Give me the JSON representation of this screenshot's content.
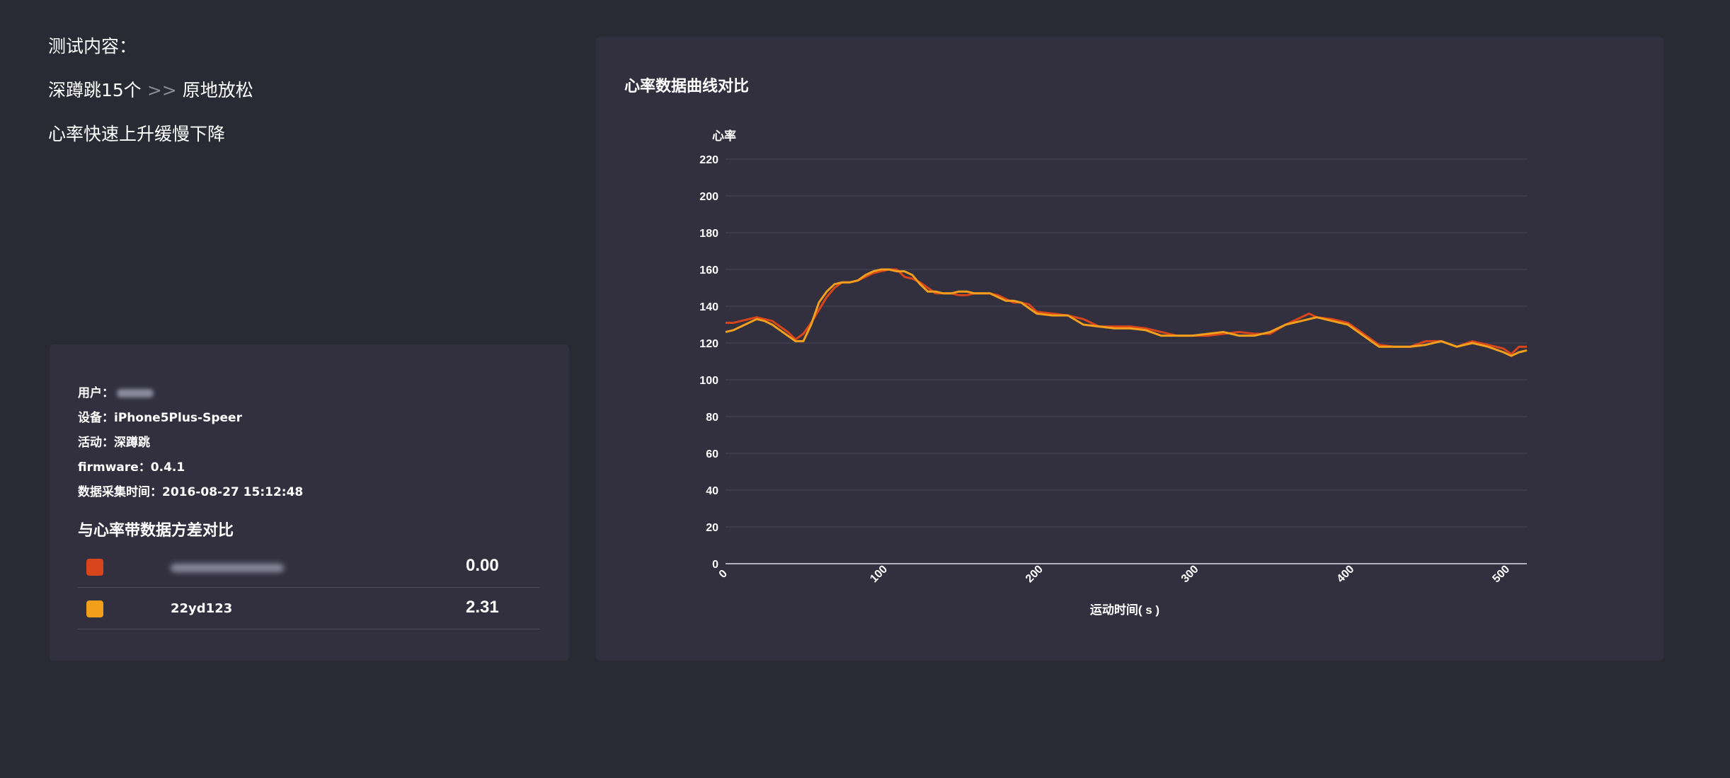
{
  "test": {
    "title": "测试内容：",
    "line1_a": "深蹲跳15个",
    "line1_arrow": ">>",
    "line1_b": "原地放松",
    "line2": "心率快速上升缓慢下降"
  },
  "info": {
    "user_label": "用户：",
    "device": "设备：iPhone5Plus-Speer",
    "activity": "活动：深蹲跳",
    "firmware": "firmware：0.4.1",
    "time": "数据采集时间：2016-08-27 15:12:48"
  },
  "variance": {
    "title": "与心率带数据方差对比",
    "rows": [
      {
        "color": "#d9451b",
        "name": "",
        "value": "0.00"
      },
      {
        "color": "#f2a01c",
        "name": "22yd123",
        "value": "2.31"
      }
    ]
  },
  "chart": {
    "title": "心率数据曲线对比"
  },
  "chart_data": {
    "type": "line",
    "ylabel": "心率",
    "xlabel": "运动时间( s )",
    "ylim": [
      0,
      220
    ],
    "xlim": [
      0,
      515
    ],
    "yticks": [
      0,
      20,
      40,
      60,
      80,
      100,
      120,
      140,
      160,
      180,
      200,
      220
    ],
    "xticks": [
      0,
      100,
      200,
      300,
      400,
      500
    ],
    "grid": true,
    "series": [
      {
        "color": "#d9451b",
        "points": [
          [
            0,
            131
          ],
          [
            5,
            131
          ],
          [
            10,
            132
          ],
          [
            15,
            133
          ],
          [
            20,
            134
          ],
          [
            25,
            133
          ],
          [
            30,
            132
          ],
          [
            35,
            129
          ],
          [
            40,
            126
          ],
          [
            45,
            122
          ],
          [
            50,
            125
          ],
          [
            55,
            131
          ],
          [
            60,
            138
          ],
          [
            65,
            145
          ],
          [
            70,
            150
          ],
          [
            75,
            153
          ],
          [
            80,
            153
          ],
          [
            85,
            154
          ],
          [
            90,
            156
          ],
          [
            95,
            158
          ],
          [
            100,
            159
          ],
          [
            105,
            160
          ],
          [
            110,
            160
          ],
          [
            115,
            156
          ],
          [
            120,
            155
          ],
          [
            125,
            153
          ],
          [
            130,
            150
          ],
          [
            135,
            147
          ],
          [
            140,
            147
          ],
          [
            145,
            147
          ],
          [
            150,
            146
          ],
          [
            155,
            146
          ],
          [
            160,
            147
          ],
          [
            165,
            147
          ],
          [
            170,
            147
          ],
          [
            175,
            146
          ],
          [
            180,
            144
          ],
          [
            185,
            142
          ],
          [
            190,
            142
          ],
          [
            195,
            141
          ],
          [
            200,
            137
          ],
          [
            210,
            136
          ],
          [
            220,
            135
          ],
          [
            230,
            133
          ],
          [
            240,
            129
          ],
          [
            250,
            129
          ],
          [
            260,
            129
          ],
          [
            270,
            128
          ],
          [
            280,
            126
          ],
          [
            290,
            124
          ],
          [
            300,
            124
          ],
          [
            310,
            124
          ],
          [
            320,
            125
          ],
          [
            330,
            126
          ],
          [
            340,
            125
          ],
          [
            350,
            125
          ],
          [
            360,
            130
          ],
          [
            370,
            134
          ],
          [
            375,
            136
          ],
          [
            380,
            134
          ],
          [
            390,
            133
          ],
          [
            400,
            131
          ],
          [
            410,
            125
          ],
          [
            420,
            119
          ],
          [
            430,
            118
          ],
          [
            440,
            118
          ],
          [
            450,
            121
          ],
          [
            460,
            121
          ],
          [
            470,
            118
          ],
          [
            480,
            121
          ],
          [
            490,
            119
          ],
          [
            500,
            117
          ],
          [
            505,
            114
          ],
          [
            510,
            118
          ],
          [
            515,
            118
          ]
        ]
      },
      {
        "color": "#f2a01c",
        "points": [
          [
            0,
            126
          ],
          [
            5,
            127
          ],
          [
            10,
            129
          ],
          [
            15,
            131
          ],
          [
            20,
            133
          ],
          [
            25,
            132
          ],
          [
            30,
            130
          ],
          [
            35,
            127
          ],
          [
            40,
            124
          ],
          [
            45,
            121
          ],
          [
            50,
            121
          ],
          [
            55,
            130
          ],
          [
            60,
            142
          ],
          [
            65,
            148
          ],
          [
            70,
            152
          ],
          [
            75,
            153
          ],
          [
            80,
            153
          ],
          [
            85,
            154
          ],
          [
            90,
            157
          ],
          [
            95,
            159
          ],
          [
            100,
            160
          ],
          [
            105,
            160
          ],
          [
            110,
            159
          ],
          [
            115,
            159
          ],
          [
            120,
            157
          ],
          [
            125,
            152
          ],
          [
            130,
            148
          ],
          [
            135,
            148
          ],
          [
            140,
            147
          ],
          [
            145,
            147
          ],
          [
            150,
            148
          ],
          [
            155,
            148
          ],
          [
            160,
            147
          ],
          [
            165,
            147
          ],
          [
            170,
            147
          ],
          [
            175,
            145
          ],
          [
            180,
            143
          ],
          [
            185,
            143
          ],
          [
            190,
            142
          ],
          [
            195,
            139
          ],
          [
            200,
            136
          ],
          [
            210,
            135
          ],
          [
            220,
            135
          ],
          [
            230,
            130
          ],
          [
            240,
            129
          ],
          [
            250,
            128
          ],
          [
            260,
            128
          ],
          [
            270,
            127
          ],
          [
            280,
            124
          ],
          [
            290,
            124
          ],
          [
            300,
            124
          ],
          [
            310,
            125
          ],
          [
            320,
            126
          ],
          [
            330,
            124
          ],
          [
            340,
            124
          ],
          [
            350,
            126
          ],
          [
            360,
            130
          ],
          [
            370,
            132
          ],
          [
            375,
            133
          ],
          [
            380,
            134
          ],
          [
            390,
            132
          ],
          [
            400,
            130
          ],
          [
            410,
            124
          ],
          [
            420,
            118
          ],
          [
            430,
            118
          ],
          [
            440,
            118
          ],
          [
            450,
            119
          ],
          [
            460,
            121
          ],
          [
            470,
            118
          ],
          [
            480,
            120
          ],
          [
            490,
            118
          ],
          [
            500,
            115
          ],
          [
            505,
            113
          ],
          [
            510,
            115
          ],
          [
            515,
            116
          ]
        ]
      }
    ]
  }
}
